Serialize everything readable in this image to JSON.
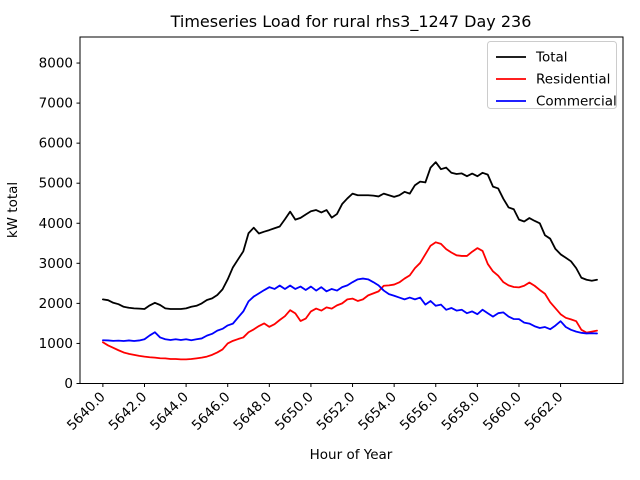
{
  "figure": {
    "title": "Timeseries Load for rural rhs3_1247  Day 236",
    "background": "#ffffff"
  },
  "axes": {
    "xlabel": "Hour of Year",
    "ylabel": "kW total",
    "x_tick_labels": [
      "5640.0",
      "5642.0",
      "5644.0",
      "5646.0",
      "5648.0",
      "5650.0",
      "5652.0",
      "5654.0",
      "5656.0",
      "5658.0",
      "5660.0",
      "5662.0"
    ],
    "y_tick_labels": [
      "0",
      "1000",
      "2000",
      "3000",
      "4000",
      "5000",
      "6000",
      "7000",
      "8000"
    ]
  },
  "legend": {
    "entries": [
      {
        "label": "Total",
        "color": "#000000"
      },
      {
        "label": "Residential",
        "color": "#ff0000"
      },
      {
        "label": "Commercial",
        "color": "#0000ff"
      }
    ]
  },
  "chart_data": {
    "type": "line",
    "title": "Timeseries Load for rural rhs3_1247  Day 236",
    "xlabel": "Hour of Year",
    "ylabel": "kW total",
    "grid": false,
    "legend_position": "upper right",
    "xlim": [
      5638.9,
      5665.0
    ],
    "ylim": [
      0,
      8650
    ],
    "x_tick_values": [
      5640,
      5642,
      5644,
      5646,
      5648,
      5650,
      5652,
      5654,
      5656,
      5658,
      5660,
      5662
    ],
    "y_tick_values": [
      0,
      1000,
      2000,
      3000,
      4000,
      5000,
      6000,
      7000,
      8000
    ],
    "x_start": 5640.0,
    "x_step": 0.25,
    "series": [
      {
        "name": "Total",
        "color": "#000000",
        "values": [
          2100,
          2080,
          2015,
          1980,
          1915,
          1890,
          1875,
          1870,
          1860,
          1950,
          2015,
          1960,
          1875,
          1860,
          1860,
          1860,
          1875,
          1915,
          1940,
          2000,
          2085,
          2125,
          2210,
          2350,
          2600,
          2900,
          3100,
          3300,
          3750,
          3890,
          3745,
          3790,
          3830,
          3875,
          3920,
          4100,
          4290,
          4090,
          4135,
          4220,
          4300,
          4330,
          4270,
          4330,
          4140,
          4230,
          4480,
          4620,
          4740,
          4700,
          4700,
          4700,
          4690,
          4670,
          4740,
          4700,
          4660,
          4700,
          4785,
          4740,
          4950,
          5040,
          5020,
          5390,
          5525,
          5350,
          5390,
          5260,
          5230,
          5245,
          5175,
          5240,
          5175,
          5260,
          5215,
          4915,
          4870,
          4610,
          4395,
          4350,
          4090,
          4045,
          4130,
          4060,
          4000,
          3700,
          3615,
          3360,
          3225,
          3140,
          3050,
          2880,
          2640,
          2590,
          2565,
          2590
        ]
      },
      {
        "name": "Residential",
        "color": "#ff0000",
        "values": [
          1030,
          950,
          890,
          830,
          775,
          740,
          715,
          690,
          670,
          655,
          645,
          630,
          628,
          611,
          611,
          602,
          602,
          611,
          628,
          646,
          672,
          715,
          775,
          850,
          1000,
          1065,
          1110,
          1150,
          1280,
          1350,
          1435,
          1500,
          1415,
          1480,
          1585,
          1680,
          1830,
          1750,
          1560,
          1620,
          1800,
          1870,
          1820,
          1900,
          1870,
          1950,
          2000,
          2100,
          2120,
          2060,
          2100,
          2200,
          2250,
          2300,
          2440,
          2450,
          2470,
          2525,
          2620,
          2700,
          2880,
          3010,
          3225,
          3440,
          3525,
          3485,
          3355,
          3270,
          3200,
          3185,
          3185,
          3290,
          3380,
          3310,
          2985,
          2800,
          2690,
          2530,
          2450,
          2410,
          2400,
          2440,
          2520,
          2440,
          2335,
          2240,
          2030,
          1880,
          1730,
          1640,
          1600,
          1555,
          1340,
          1270,
          1295,
          1320
        ]
      },
      {
        "name": "Commercial",
        "color": "#0000ff",
        "values": [
          1080,
          1075,
          1065,
          1070,
          1060,
          1075,
          1060,
          1075,
          1105,
          1200,
          1280,
          1150,
          1105,
          1085,
          1105,
          1085,
          1105,
          1080,
          1105,
          1125,
          1195,
          1240,
          1320,
          1365,
          1450,
          1495,
          1650,
          1800,
          2050,
          2170,
          2250,
          2330,
          2405,
          2360,
          2445,
          2360,
          2445,
          2360,
          2420,
          2335,
          2420,
          2320,
          2405,
          2300,
          2360,
          2320,
          2405,
          2450,
          2530,
          2600,
          2620,
          2600,
          2530,
          2450,
          2320,
          2230,
          2190,
          2145,
          2100,
          2145,
          2100,
          2145,
          1970,
          2060,
          1940,
          1970,
          1840,
          1885,
          1820,
          1840,
          1755,
          1800,
          1730,
          1842,
          1755,
          1670,
          1755,
          1775,
          1670,
          1610,
          1608,
          1520,
          1495,
          1430,
          1385,
          1410,
          1355,
          1445,
          1555,
          1410,
          1340,
          1295,
          1265,
          1250,
          1255,
          1250
        ]
      }
    ]
  }
}
